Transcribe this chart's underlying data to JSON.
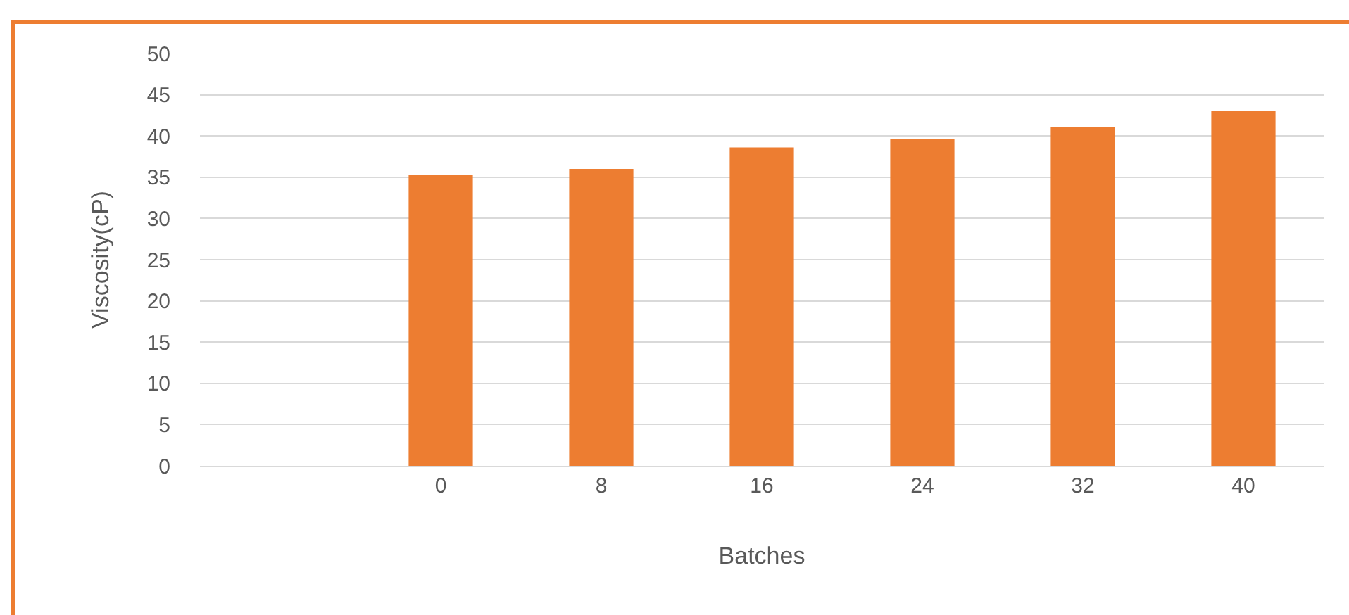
{
  "chart_data": {
    "type": "bar",
    "xlabel": "Batches",
    "ylabel": "Viscosity(cP)",
    "categories": [
      null,
      "0",
      "8",
      "16",
      "24",
      "32",
      "40"
    ],
    "values": [
      null,
      35.3,
      36,
      38.6,
      39.6,
      41.1,
      43
    ],
    "color": "#ed7d31",
    "ylim": [
      0,
      50
    ],
    "yticks": [
      0,
      5,
      10,
      15,
      20,
      25,
      30,
      35,
      40,
      45,
      50
    ],
    "grid": "y",
    "legend": false
  }
}
